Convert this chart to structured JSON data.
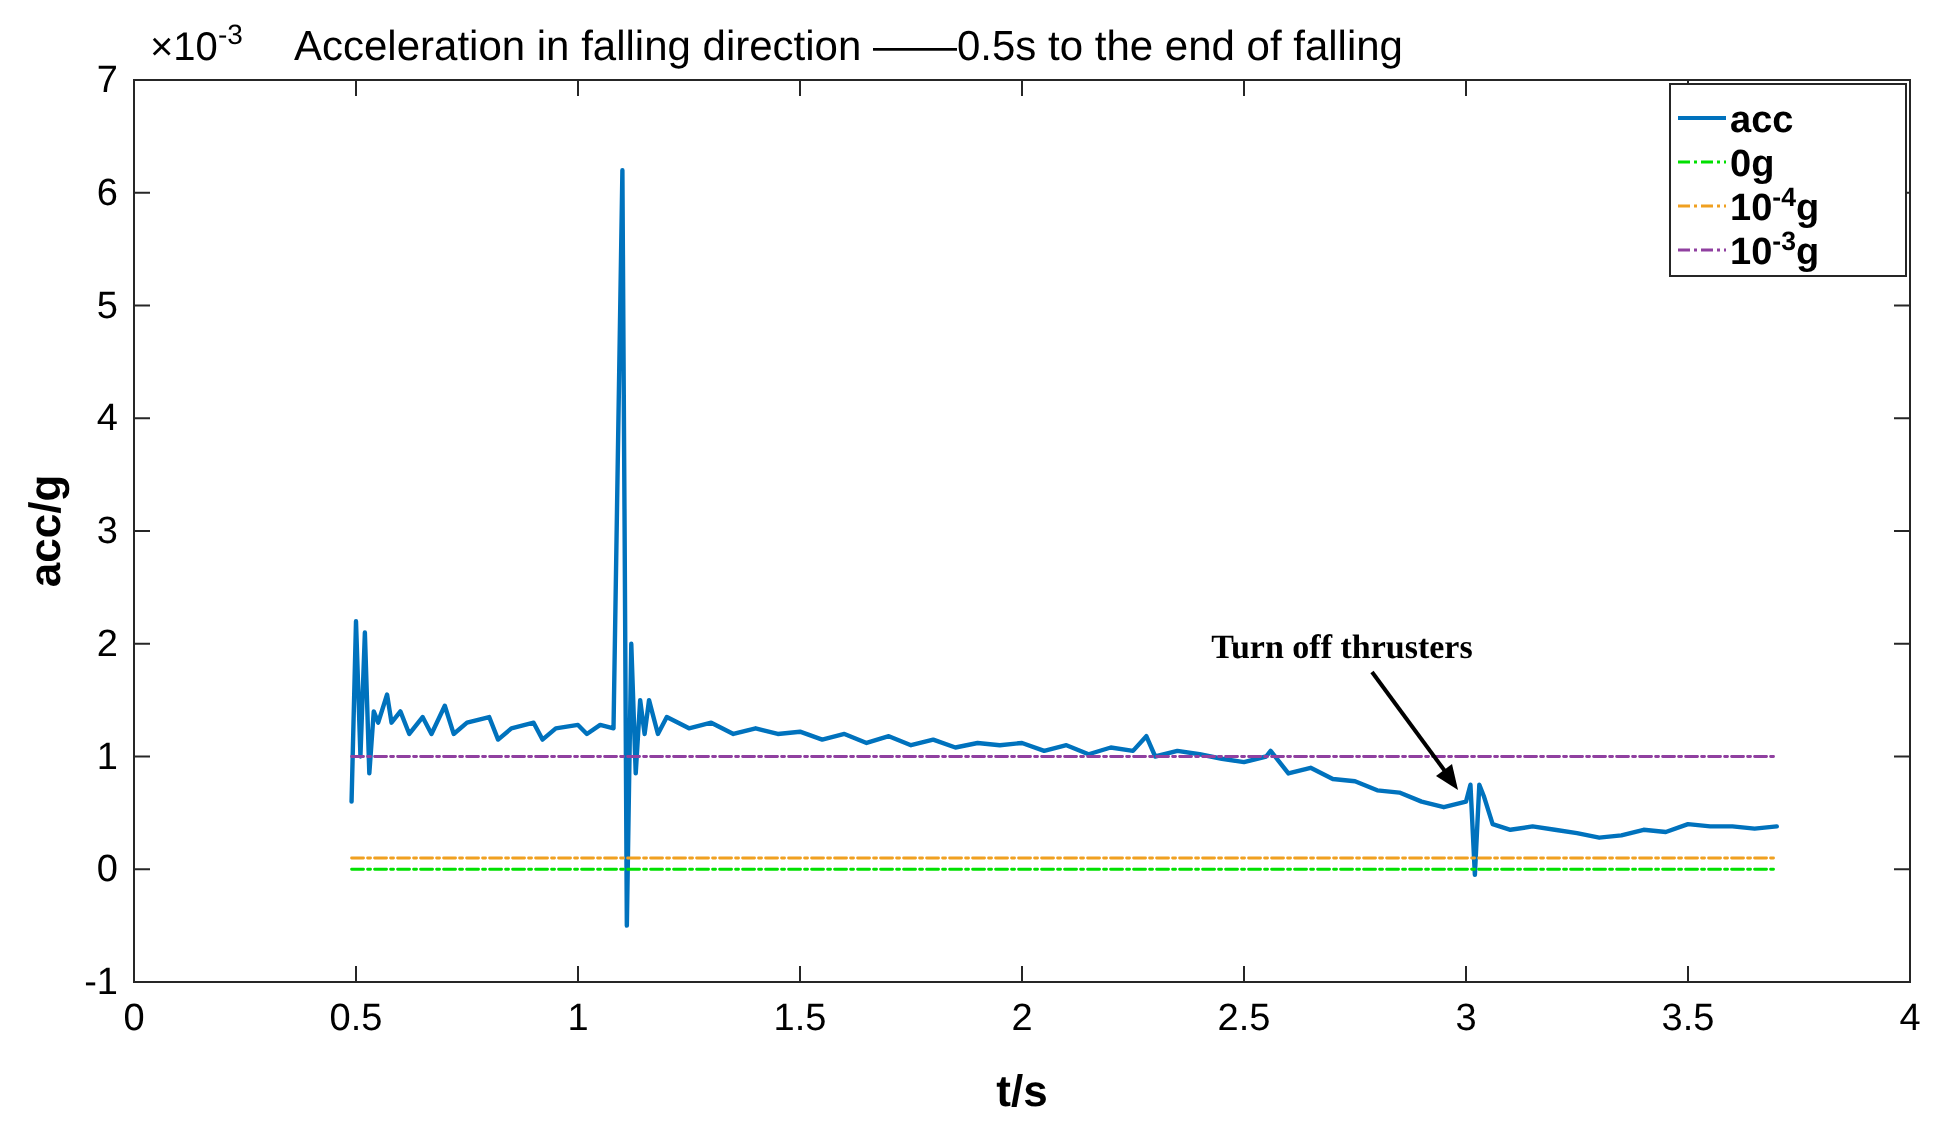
{
  "chart_data": {
    "type": "line",
    "title": "Acceleration in falling direction ——0.5s to the end of falling",
    "xlabel": "t/s",
    "ylabel": "acc/g",
    "annotations": [
      "×10$^{-3}$",
      "Turn off thrusters"
    ],
    "xlim": [
      0,
      4
    ],
    "xticks": [
      0,
      0.5,
      1,
      1.5,
      2,
      2.5,
      3,
      3.5,
      4
    ],
    "ylim": [
      -1,
      7
    ],
    "yticks": [
      -1,
      0,
      1,
      2,
      3,
      4,
      5,
      6,
      7
    ],
    "grid": false,
    "legend": "top right",
    "series": [
      {
        "name": "acc",
        "color": "#0072bd",
        "line_style": "solid",
        "x": [
          0.49,
          0.5,
          0.51,
          0.52,
          0.53,
          0.54,
          0.55,
          0.57,
          0.58,
          0.6,
          0.62,
          0.65,
          0.67,
          0.7,
          0.72,
          0.75,
          0.8,
          0.82,
          0.85,
          0.9,
          0.92,
          0.95,
          1,
          1.02,
          1.05,
          1.08,
          1.1,
          1.105,
          1.11,
          1.12,
          1.13,
          1.14,
          1.15,
          1.16,
          1.18,
          1.2,
          1.25,
          1.3,
          1.35,
          1.4,
          1.45,
          1.5,
          1.55,
          1.6,
          1.65,
          1.7,
          1.75,
          1.8,
          1.85,
          1.9,
          1.95,
          2,
          2.05,
          2.1,
          2.15,
          2.2,
          2.25,
          2.28,
          2.3,
          2.35,
          2.4,
          2.45,
          2.5,
          2.55,
          2.56,
          2.6,
          2.65,
          2.7,
          2.75,
          2.8,
          2.85,
          2.9,
          2.95,
          3,
          3.01,
          3.02,
          3.03,
          3.04,
          3.06,
          3.1,
          3.15,
          3.2,
          3.25,
          3.3,
          3.35,
          3.4,
          3.45,
          3.5,
          3.55,
          3.6,
          3.65,
          3.7
        ],
        "values": [
          0.6,
          2.2,
          1.0,
          2.1,
          0.85,
          1.4,
          1.3,
          1.55,
          1.3,
          1.4,
          1.2,
          1.35,
          1.2,
          1.45,
          1.2,
          1.3,
          1.35,
          1.15,
          1.25,
          1.3,
          1.15,
          1.25,
          1.28,
          1.2,
          1.28,
          1.25,
          6.2,
          3.0,
          -0.5,
          2.0,
          0.85,
          1.5,
          1.2,
          1.5,
          1.2,
          1.35,
          1.25,
          1.3,
          1.2,
          1.25,
          1.2,
          1.22,
          1.15,
          1.2,
          1.12,
          1.18,
          1.1,
          1.15,
          1.08,
          1.12,
          1.1,
          1.12,
          1.05,
          1.1,
          1.02,
          1.08,
          1.05,
          1.18,
          1.0,
          1.05,
          1.02,
          0.98,
          0.95,
          1.0,
          1.05,
          0.85,
          0.9,
          0.8,
          0.78,
          0.7,
          0.68,
          0.6,
          0.55,
          0.6,
          0.75,
          -0.05,
          0.75,
          0.65,
          0.4,
          0.35,
          0.38,
          0.35,
          0.32,
          0.28,
          0.3,
          0.35,
          0.33,
          0.4,
          0.38,
          0.38,
          0.36,
          0.38
        ]
      },
      {
        "name": "0g",
        "color": "#00e000",
        "line_style": "dashed",
        "x": [
          0.49,
          3.7
        ],
        "values": [
          0,
          0
        ]
      },
      {
        "name": "10$^{-4}$g",
        "color": "#f0a020",
        "line_style": "dashed",
        "x": [
          0.49,
          3.7
        ],
        "values": [
          0.1,
          0.1
        ]
      },
      {
        "name": "10$^{-3}$g",
        "color": "#9040a0",
        "line_style": "dashed",
        "x": [
          0.49,
          3.7
        ],
        "values": [
          1,
          1
        ]
      }
    ]
  }
}
